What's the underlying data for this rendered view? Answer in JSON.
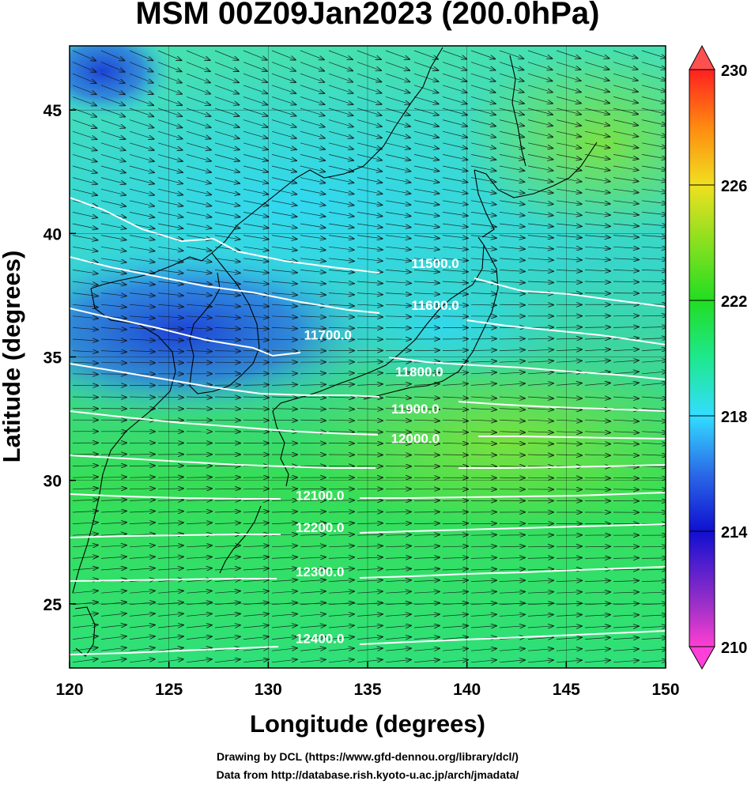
{
  "title": "MSM 00Z09Jan2023 (200.0hPa)",
  "x_axis": {
    "label": "Longitude (degrees)",
    "range": [
      120,
      150
    ],
    "ticks": [
      "120",
      "125",
      "130",
      "135",
      "140",
      "145",
      "150"
    ]
  },
  "y_axis": {
    "label": "Latitude  (degrees)",
    "range": [
      22.4,
      47.6
    ],
    "ticks": [
      "25",
      "30",
      "35",
      "40",
      "45"
    ]
  },
  "colorbar": {
    "range": [
      210,
      230
    ],
    "ticks": [
      "210",
      "214",
      "218",
      "222",
      "226",
      "230"
    ]
  },
  "contours": [
    {
      "label": "11500.0",
      "lon": 138.4,
      "lat": 38.8
    },
    {
      "label": "11600.0",
      "lon": 138.4,
      "lat": 37.1
    },
    {
      "label": "11700.0",
      "lon": 133.0,
      "lat": 35.9
    },
    {
      "label": "11800.0",
      "lon": 137.6,
      "lat": 34.4
    },
    {
      "label": "11900.0",
      "lon": 137.4,
      "lat": 32.9
    },
    {
      "label": "12000.0",
      "lon": 137.4,
      "lat": 31.7
    },
    {
      "label": "12100.0",
      "lon": 132.6,
      "lat": 29.4
    },
    {
      "label": "12200.0",
      "lon": 132.6,
      "lat": 28.1
    },
    {
      "label": "12300.0",
      "lon": 132.6,
      "lat": 26.3
    },
    {
      "label": "12400.0",
      "lon": 132.6,
      "lat": 23.6
    }
  ],
  "credits": {
    "line1": "Drawing by DCL (https://www.gfd-dennou.org/library/dcl/)",
    "line2": "Data from http://database.rish.kyoto-u.ac.jp/arch/jmadata/"
  },
  "colors": {
    "background": "#ffffff",
    "contour": "#ffffff",
    "coast": "#000000"
  }
}
